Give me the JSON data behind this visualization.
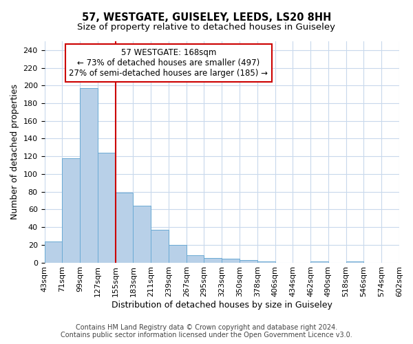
{
  "title": "57, WESTGATE, GUISELEY, LEEDS, LS20 8HH",
  "subtitle": "Size of property relative to detached houses in Guiseley",
  "xlabel": "Distribution of detached houses by size in Guiseley",
  "ylabel": "Number of detached properties",
  "bar_values": [
    24,
    118,
    197,
    124,
    79,
    64,
    37,
    20,
    8,
    5,
    4,
    3,
    1,
    0,
    0,
    1,
    0,
    1,
    0,
    0
  ],
  "bar_labels": [
    "43sqm",
    "71sqm",
    "99sqm",
    "127sqm",
    "155sqm",
    "183sqm",
    "211sqm",
    "239sqm",
    "267sqm",
    "295sqm",
    "323sqm",
    "350sqm",
    "378sqm",
    "406sqm",
    "434sqm",
    "462sqm",
    "490sqm",
    "518sqm",
    "546sqm",
    "574sqm",
    "602sqm"
  ],
  "bar_color": "#b8d0e8",
  "bar_edge_color": "#6aaad4",
  "vline_x": 4.0,
  "vline_color": "#cc0000",
  "annotation_line1": "57 WESTGATE: 168sqm",
  "annotation_line2": "← 73% of detached houses are smaller (497)",
  "annotation_line3": "27% of semi-detached houses are larger (185) →",
  "annotation_box_color": "#cc0000",
  "ylim": [
    0,
    250
  ],
  "yticks": [
    0,
    20,
    40,
    60,
    80,
    100,
    120,
    140,
    160,
    180,
    200,
    220,
    240
  ],
  "background_color": "#ffffff",
  "grid_color": "#c8d8ec",
  "footer_text": "Contains HM Land Registry data © Crown copyright and database right 2024.\nContains public sector information licensed under the Open Government Licence v3.0.",
  "title_fontsize": 10.5,
  "subtitle_fontsize": 9.5,
  "label_fontsize": 9,
  "tick_fontsize": 8,
  "footer_fontsize": 7,
  "annotation_fontsize": 8.5
}
